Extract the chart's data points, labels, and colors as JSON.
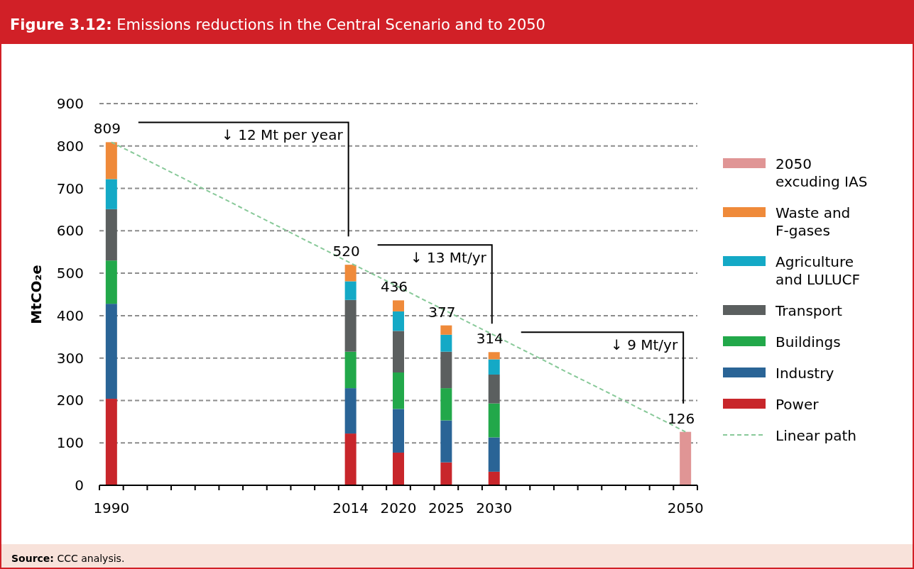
{
  "chart_data": {
    "type": "bar",
    "title": "Figure 3.12: Emissions reductions in the Central Scenario and to 2050",
    "ylabel": "MtCO₂e",
    "categories": [
      "1990",
      null,
      null,
      null,
      null,
      null,
      null,
      null,
      null,
      null,
      "2014",
      null,
      "2020",
      null,
      "2025",
      null,
      "2030",
      null,
      null,
      null,
      null,
      null,
      null,
      null,
      "2050"
    ],
    "stacked": true,
    "series": [
      {
        "name": "Power",
        "color": "#c8262b",
        "values": [
          204,
          null,
          null,
          null,
          null,
          null,
          null,
          null,
          null,
          null,
          122,
          null,
          77,
          null,
          54,
          null,
          32,
          null,
          null,
          null,
          null,
          null,
          null,
          null,
          null
        ]
      },
      {
        "name": "Industry",
        "color": "#2a6496",
        "values": [
          224,
          null,
          null,
          null,
          null,
          null,
          null,
          null,
          null,
          null,
          107,
          null,
          103,
          null,
          99,
          null,
          81,
          null,
          null,
          null,
          null,
          null,
          null,
          null,
          null
        ]
      },
      {
        "name": "Buildings",
        "color": "#22a84a",
        "values": [
          102,
          null,
          null,
          null,
          null,
          null,
          null,
          null,
          null,
          null,
          86,
          null,
          86,
          null,
          76,
          null,
          80,
          null,
          null,
          null,
          null,
          null,
          null,
          null,
          null
        ]
      },
      {
        "name": "Transport",
        "color": "#5b5f5f",
        "values": [
          121,
          null,
          null,
          null,
          null,
          null,
          null,
          null,
          null,
          null,
          122,
          null,
          98,
          null,
          86,
          null,
          68,
          null,
          null,
          null,
          null,
          null,
          null,
          null,
          null
        ]
      },
      {
        "name": "Agriculture and LULUCF",
        "color": "#14a9c6",
        "values": [
          71,
          null,
          null,
          null,
          null,
          null,
          null,
          null,
          null,
          null,
          44,
          null,
          46,
          null,
          40,
          null,
          36,
          null,
          null,
          null,
          null,
          null,
          null,
          null,
          null
        ]
      },
      {
        "name": "Waste and F-gases",
        "color": "#ef8a3a",
        "values": [
          87,
          null,
          null,
          null,
          null,
          null,
          null,
          null,
          null,
          null,
          39,
          null,
          26,
          null,
          22,
          null,
          17,
          null,
          null,
          null,
          null,
          null,
          null,
          null,
          null
        ]
      },
      {
        "name": "2050 excuding IAS",
        "color": "#e09595",
        "values": [
          null,
          null,
          null,
          null,
          null,
          null,
          null,
          null,
          null,
          null,
          null,
          null,
          null,
          null,
          null,
          null,
          null,
          null,
          null,
          null,
          null,
          null,
          null,
          null,
          126
        ]
      },
      {
        "name": "Linear path",
        "type": "line",
        "color": "#88c999",
        "line_style": "dashed",
        "values": [
          809,
          781,
          752,
          724,
          695,
          667,
          638,
          610,
          581,
          553,
          524,
          496,
          468,
          439,
          411,
          382,
          354,
          325,
          297,
          268,
          240,
          212,
          183,
          155,
          126
        ]
      }
    ],
    "totals": [
      "809",
      null,
      null,
      null,
      null,
      null,
      null,
      null,
      null,
      null,
      "520",
      null,
      "436",
      null,
      "377",
      null,
      "314",
      null,
      null,
      null,
      null,
      null,
      null,
      null,
      "126"
    ],
    "ylim": [
      0,
      900
    ],
    "yticks": [
      0,
      100,
      200,
      300,
      400,
      500,
      600,
      700,
      800,
      900
    ],
    "grid": "y",
    "legend": "right",
    "annotations": [
      "↓ 12 Mt per year",
      "↓ 13 Mt/yr",
      "↓ 9 Mt/yr",
      "Source: CCC analysis."
    ]
  }
}
